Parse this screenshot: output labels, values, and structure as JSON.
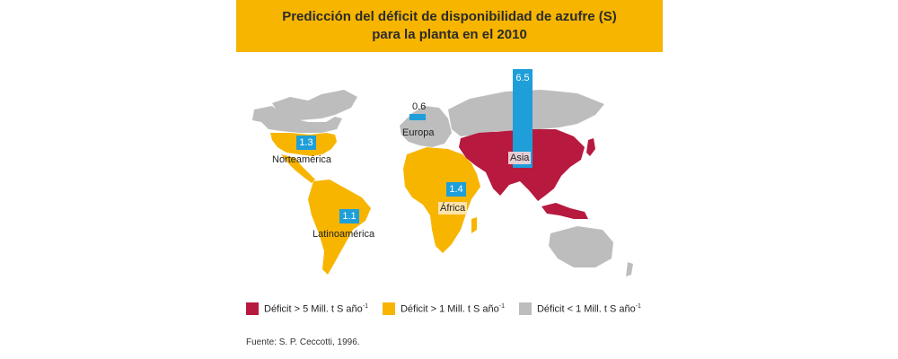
{
  "title": {
    "line1": "Predicción del déficit de disponibilidad de azufre (S)",
    "line2": "para la planta en el 2010"
  },
  "colors": {
    "high": "#b7193f",
    "medium": "#f7b500",
    "low": "#bdbdbd",
    "value_box": "#1e9fd9",
    "title_bg": "#f7b500"
  },
  "regions": [
    {
      "id": "north-america",
      "label": "Norteamérica",
      "value": "1.3",
      "category": "medium"
    },
    {
      "id": "latin-america",
      "label": "Latinoamérica",
      "value": "1.1",
      "category": "medium"
    },
    {
      "id": "europe",
      "label": "Europa",
      "value": "0.6",
      "category": "low"
    },
    {
      "id": "africa",
      "label": "África",
      "value": "1.4",
      "category": "medium"
    },
    {
      "id": "asia",
      "label": "Asia",
      "value": "6.5",
      "category": "high"
    }
  ],
  "legend": [
    {
      "label": "Déficit > 5 Mill. t S año",
      "sup": "-1",
      "color": "#b7193f"
    },
    {
      "label": "Déficit > 1 Mill. t S año",
      "sup": "-1",
      "color": "#f7b500"
    },
    {
      "label": "Déficit < 1 Mill. t S año",
      "sup": "-1",
      "color": "#bdbdbd"
    }
  ],
  "source": "Fuente: S. P. Ceccotti, 1996."
}
